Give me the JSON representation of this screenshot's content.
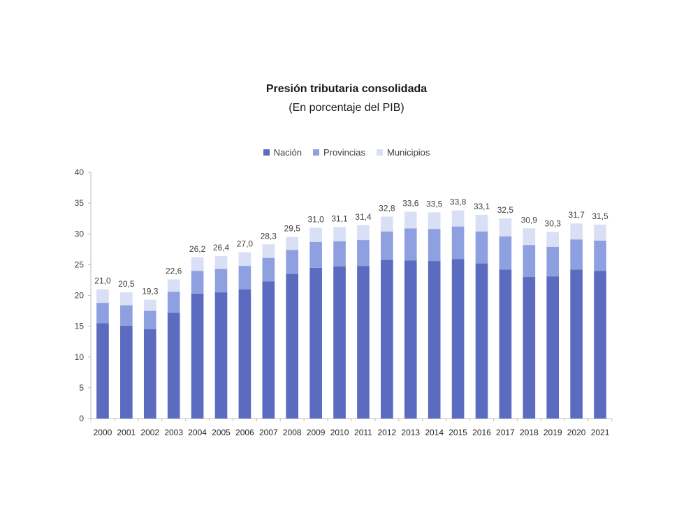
{
  "chart_data": {
    "type": "bar",
    "stacked": true,
    "title": "Presión tributaria consolidada",
    "subtitle": "(En porcentaje del PIB)",
    "categories": [
      "2000",
      "2001",
      "2002",
      "2003",
      "2004",
      "2005",
      "2006",
      "2007",
      "2008",
      "2009",
      "2010",
      "2011",
      "2012",
      "2013",
      "2014",
      "2015",
      "2016",
      "2017",
      "2018",
      "2019",
      "2020",
      "2021"
    ],
    "series": [
      {
        "name": "Nación",
        "color": "#5b6bbf",
        "values": [
          15.5,
          15.1,
          14.5,
          17.2,
          20.3,
          20.5,
          21.0,
          22.3,
          23.5,
          24.5,
          24.7,
          24.8,
          25.8,
          25.7,
          25.6,
          25.9,
          25.2,
          24.2,
          23.0,
          23.1,
          24.2,
          24.0
        ]
      },
      {
        "name": "Provincias",
        "color": "#8fa0e0",
        "values": [
          3.3,
          3.3,
          3.0,
          3.4,
          3.7,
          3.8,
          3.8,
          3.8,
          3.9,
          4.2,
          4.1,
          4.2,
          4.6,
          5.2,
          5.2,
          5.3,
          5.2,
          5.4,
          5.2,
          4.8,
          4.9,
          4.9
        ]
      },
      {
        "name": "Municipios",
        "color": "#d9dff5",
        "values": [
          2.2,
          2.1,
          1.8,
          2.0,
          2.2,
          2.1,
          2.2,
          2.2,
          2.1,
          2.3,
          2.3,
          2.4,
          2.4,
          2.7,
          2.7,
          2.6,
          2.7,
          2.9,
          2.7,
          2.4,
          2.6,
          2.6
        ]
      }
    ],
    "totals": [
      "21,0",
      "20,5",
      "19,3",
      "22,6",
      "26,2",
      "26,4",
      "27,0",
      "28,3",
      "29,5",
      "31,0",
      "31,1",
      "31,4",
      "32,8",
      "33,6",
      "33,5",
      "33,8",
      "33,1",
      "32,5",
      "30,9",
      "30,3",
      "31,7",
      "31,5"
    ],
    "ylim": [
      0,
      40
    ],
    "yticks": [
      0,
      5,
      10,
      15,
      20,
      25,
      30,
      35,
      40
    ],
    "grid": false,
    "legend_position": "top-center",
    "xlabel": "",
    "ylabel": ""
  }
}
